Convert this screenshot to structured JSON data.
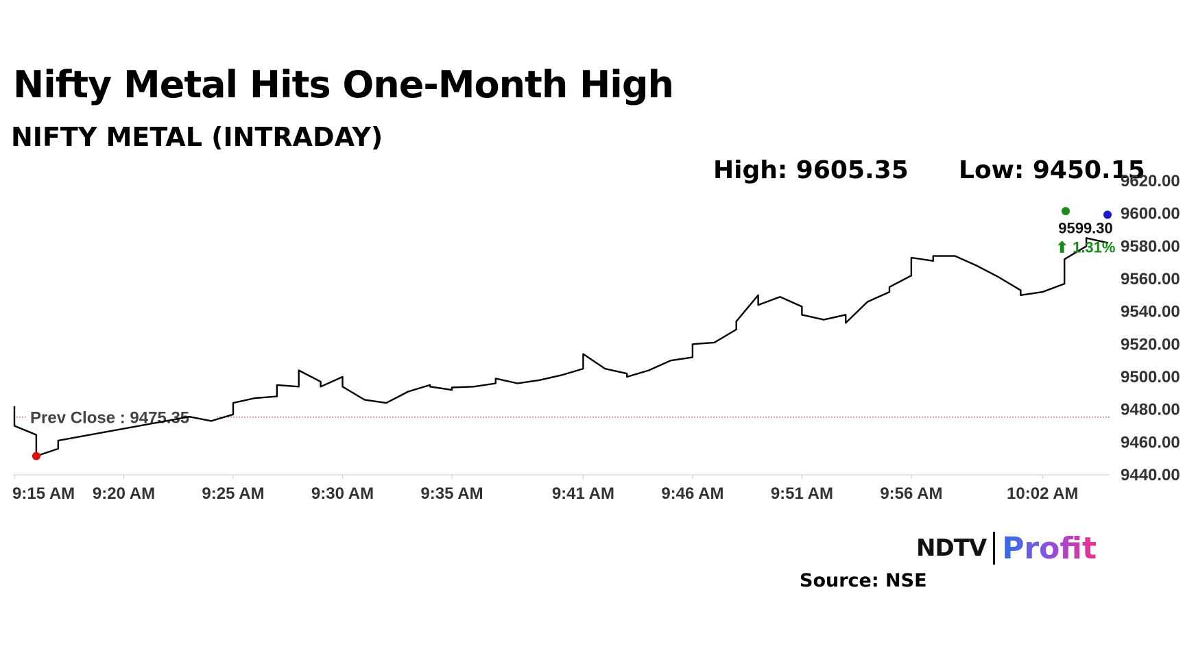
{
  "header": {
    "title": "Nifty Metal Hits One-Month High",
    "subtitle": "NIFTY METAL (INTRADAY)"
  },
  "stats": {
    "high_label": "High: 9605.35",
    "low_label": "Low: 9450.15"
  },
  "footer": {
    "brand_primary": "NDTV",
    "brand_secondary": "Profit",
    "source": "Source: NSE"
  },
  "chart_data": {
    "type": "line",
    "xlabel": "",
    "ylabel": "",
    "x_ticks": [
      "9:15 AM",
      "9:20 AM",
      "9:25 AM",
      "9:30 AM",
      "9:35 AM",
      "9:41 AM",
      "9:46 AM",
      "9:51 AM",
      "9:56 AM",
      "10:02 AM"
    ],
    "y_ticks": [
      "9620.00",
      "9600.00",
      "9580.00",
      "9560.00",
      "9540.00",
      "9520.00",
      "9500.00",
      "9480.00",
      "9460.00",
      "9440.00"
    ],
    "ylim": [
      9440,
      9620
    ],
    "grid": false,
    "reference_line": {
      "label": "Prev Close : 9475.35",
      "value": 9475.35,
      "color": "#b22222"
    },
    "last": {
      "label": "9599.30",
      "change": "1.31%",
      "change_color": "#1a8a1a",
      "marker_color": "#1a1acc"
    },
    "high_marker_color": "#1a8a1a",
    "low_marker_color": "#e01010",
    "series": [
      {
        "color": "#000000",
        "x": [
          "9:15 AM",
          "9:15 AM",
          "9:16 AM",
          "9:16 AM",
          "9:16 AM",
          "9:17 AM",
          "9:17 AM",
          "9:23 AM",
          "9:24 AM",
          "9:24 AM",
          "9:25 AM",
          "9:25 AM",
          "9:26 AM",
          "9:27 AM",
          "9:27 AM",
          "9:28 AM",
          "9:28 AM",
          "9:29 AM",
          "9:29 AM",
          "9:30 AM",
          "9:30 AM",
          "9:31 AM",
          "9:32 AM",
          "9:33 AM",
          "9:34 AM",
          "9:34 AM",
          "9:35 AM",
          "9:35 AM",
          "9:36 AM",
          "9:37 AM",
          "9:37 AM",
          "9:38 AM",
          "9:39 AM",
          "9:40 AM",
          "9:41 AM",
          "9:41 AM",
          "9:42 AM",
          "9:43 AM",
          "9:43 AM",
          "9:44 AM",
          "9:44 AM",
          "9:45 AM",
          "9:45 AM",
          "9:46 AM",
          "9:46 AM",
          "9:47 AM",
          "9:48 AM",
          "9:48 AM",
          "9:49 AM",
          "9:49 AM",
          "9:50 AM",
          "9:51 AM",
          "9:51 AM",
          "9:52 AM",
          "9:53 AM",
          "9:53 AM",
          "9:54 AM",
          "9:55 AM",
          "9:55 AM",
          "9:56 AM",
          "9:56 AM",
          "9:57 AM",
          "9:57 AM",
          "9:58 AM",
          "9:59 AM",
          "9:59 AM",
          "10:00 AM",
          "10:01 AM",
          "10:01 AM",
          "10:02 AM",
          "10:03 AM",
          "10:03 AM",
          "10:04 AM",
          "10:04 AM",
          "10:05 AM"
        ],
        "y": [
          9482.0,
          9470.0,
          9464.5,
          9455.0,
          9451.5,
          9456.0,
          9461.0,
          9475.6,
          9473.0,
          9473.0,
          9477.0,
          9484.0,
          9487.0,
          9488.0,
          9495.0,
          9494.0,
          9504.0,
          9497.0,
          9494.0,
          9500.0,
          9494.0,
          9486.0,
          9484.0,
          9491.0,
          9495.0,
          9494.0,
          9492.0,
          9493.5,
          9494.0,
          9496.0,
          9499.0,
          9496.0,
          9498.0,
          9501.0,
          9505.0,
          9514.0,
          9505.0,
          9502.0,
          9500.0,
          9504.0,
          9504.0,
          9510.0,
          9510.0,
          9512.0,
          9520.0,
          9521.0,
          9529.0,
          9534.0,
          9550.0,
          9544.0,
          9549.0,
          9543.0,
          9538.0,
          9535.0,
          9538.0,
          9533.0,
          9546.0,
          9552.0,
          9555.0,
          9562.0,
          9573.0,
          9571.0,
          9574.0,
          9574.0,
          9568.0,
          9568.0,
          9561.0,
          9553.0,
          9550.0,
          9552.0,
          9557.0,
          9572.0,
          9580.0,
          9585.0,
          9582.0
        ]
      }
    ]
  }
}
